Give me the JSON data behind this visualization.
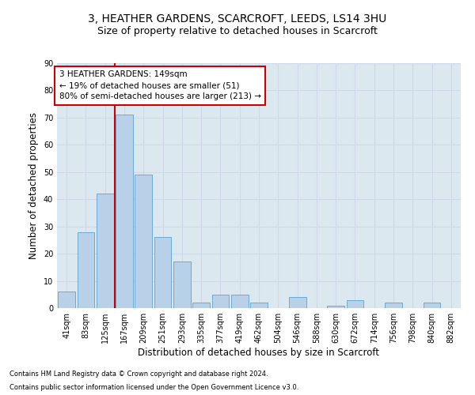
{
  "title1": "3, HEATHER GARDENS, SCARCROFT, LEEDS, LS14 3HU",
  "title2": "Size of property relative to detached houses in Scarcroft",
  "xlabel": "Distribution of detached houses by size in Scarcroft",
  "ylabel": "Number of detached properties",
  "categories": [
    "41sqm",
    "83sqm",
    "125sqm",
    "167sqm",
    "209sqm",
    "251sqm",
    "293sqm",
    "335sqm",
    "377sqm",
    "419sqm",
    "462sqm",
    "504sqm",
    "546sqm",
    "588sqm",
    "630sqm",
    "672sqm",
    "714sqm",
    "756sqm",
    "798sqm",
    "840sqm",
    "882sqm"
  ],
  "values": [
    6,
    28,
    42,
    71,
    49,
    26,
    17,
    2,
    5,
    5,
    2,
    0,
    4,
    0,
    1,
    3,
    0,
    2,
    0,
    2,
    0
  ],
  "bar_color": "#b8d0e8",
  "bar_edge_color": "#6aaad4",
  "vline_pos": 2.5,
  "annotation_text1": "3 HEATHER GARDENS: 149sqm",
  "annotation_text2": "← 19% of detached houses are smaller (51)",
  "annotation_text3": "80% of semi-detached houses are larger (213) →",
  "annotation_box_color": "#ffffff",
  "annotation_box_edge_color": "#cc0000",
  "vline_color": "#cc0000",
  "footnote1": "Contains HM Land Registry data © Crown copyright and database right 2024.",
  "footnote2": "Contains public sector information licensed under the Open Government Licence v3.0.",
  "ylim": [
    0,
    90
  ],
  "yticks": [
    0,
    10,
    20,
    30,
    40,
    50,
    60,
    70,
    80,
    90
  ],
  "grid_color": "#d0d8e8",
  "bg_color": "#dce8f0",
  "title1_fontsize": 10,
  "title2_fontsize": 9,
  "xlabel_fontsize": 8.5,
  "ylabel_fontsize": 8.5,
  "tick_fontsize": 7,
  "annot_fontsize": 7.5,
  "footnote_fontsize": 6
}
